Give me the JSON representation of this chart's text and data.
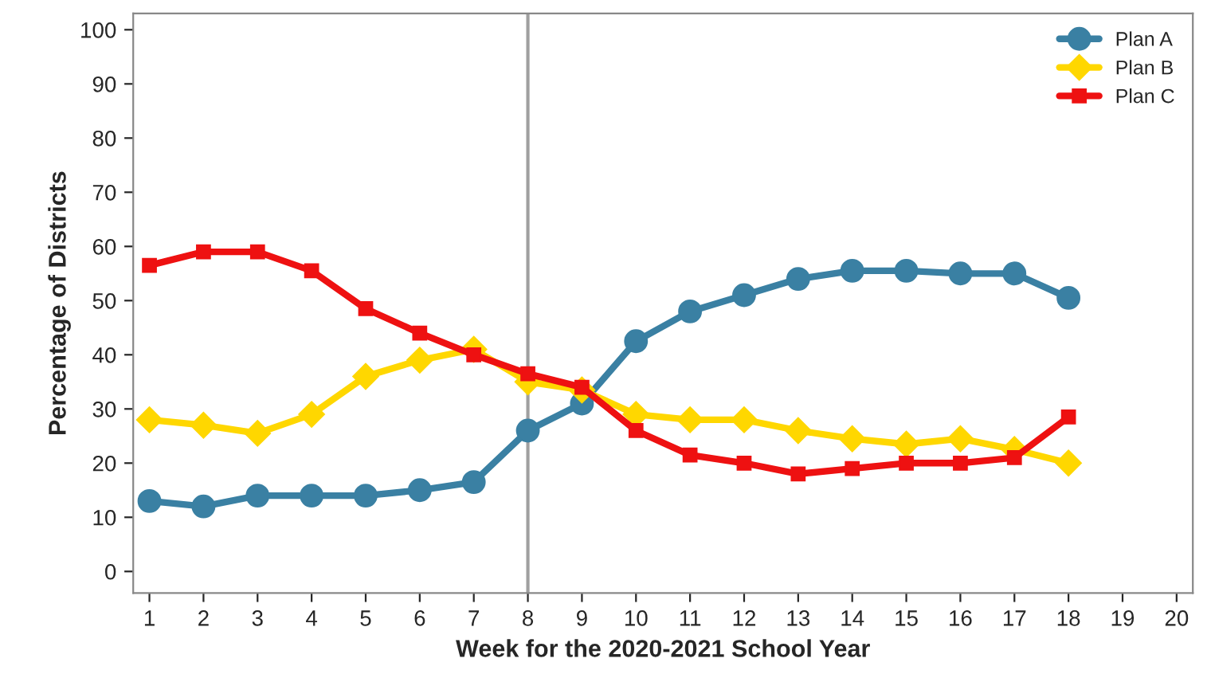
{
  "chart_data": {
    "type": "line",
    "xlabel": "Week for the 2020-2021 School Year",
    "ylabel": "Percentage of Districts",
    "x": [
      1,
      2,
      3,
      4,
      5,
      6,
      7,
      8,
      9,
      10,
      11,
      12,
      13,
      14,
      15,
      16,
      17,
      18
    ],
    "series": [
      {
        "name": "Plan A",
        "color": "#3a80a3",
        "marker": "circle",
        "values": [
          13,
          12,
          14,
          14,
          14,
          15,
          16.5,
          26,
          31,
          42.5,
          48,
          51,
          54,
          55.5,
          55.5,
          55,
          55,
          50.5
        ]
      },
      {
        "name": "Plan B",
        "color": "#ffd700",
        "marker": "diamond",
        "values": [
          28,
          27,
          25.5,
          29,
          36,
          39,
          41,
          35,
          33.5,
          29,
          28,
          28,
          26,
          24.5,
          23.5,
          24.5,
          22.5,
          20
        ]
      },
      {
        "name": "Plan C",
        "color": "#ee1111",
        "marker": "square",
        "values": [
          56.5,
          59,
          59,
          55.5,
          48.5,
          44,
          40,
          36.5,
          34,
          26,
          21.5,
          20,
          18,
          19,
          20,
          20,
          21,
          28.5
        ]
      }
    ],
    "xlim": [
      0.7,
      20.3
    ],
    "xticks": [
      1,
      2,
      3,
      4,
      5,
      6,
      7,
      8,
      9,
      10,
      11,
      12,
      13,
      14,
      15,
      16,
      17,
      18,
      19,
      20
    ],
    "ylim": [
      -4,
      103
    ],
    "yticks": [
      0,
      10,
      20,
      30,
      40,
      50,
      60,
      70,
      80,
      90,
      100
    ],
    "ref_lines": [
      {
        "axis": "x",
        "value": 8,
        "color": "#a0a0a0"
      }
    ],
    "legend": "top right",
    "grid": false,
    "line_style": "solid"
  }
}
